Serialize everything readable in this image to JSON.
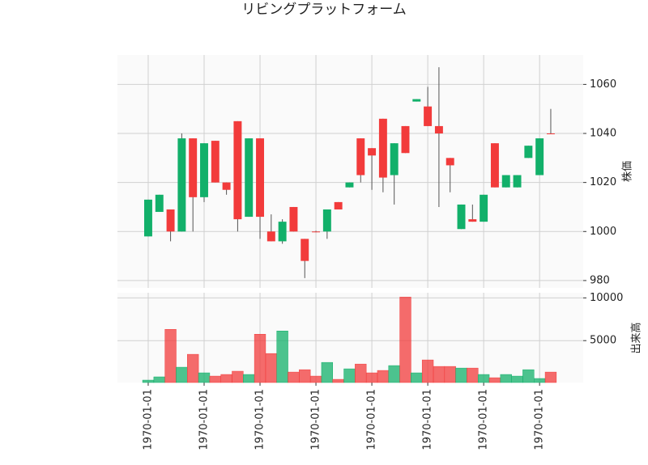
{
  "chart_data": {
    "type": "candlestick",
    "title": "リビングプラットフォーム",
    "ylabel": "株価",
    "volume_label": "出来高",
    "up_color": "#12b06a",
    "down_color": "#f23b3b",
    "grid": true,
    "xlim": [
      -2.75,
      38.9
    ],
    "xticks": [
      {
        "value": 0,
        "label": "1970-01-01"
      },
      {
        "value": 5,
        "label": "1970-01-01"
      },
      {
        "value": 10,
        "label": "1970-01-01"
      },
      {
        "value": 15,
        "label": "1970-01-01"
      },
      {
        "value": 20,
        "label": "1970-01-01"
      },
      {
        "value": 25,
        "label": "1970-01-01"
      },
      {
        "value": 30,
        "label": "1970-01-01"
      },
      {
        "value": 35,
        "label": "1970-01-01"
      }
    ],
    "ylim": [
      977,
      1072
    ],
    "yticks": [
      980,
      1000,
      1020,
      1040,
      1060
    ],
    "volume_ylim": [
      100,
      10600
    ],
    "volume_ticks": [
      5000,
      10000
    ],
    "open": [
      998,
      1008,
      1009,
      1000,
      1038,
      1014,
      1037,
      1020,
      1045,
      1006,
      1038,
      1000,
      996,
      1010,
      997,
      1000,
      1000,
      1012,
      1018,
      1038,
      1034,
      1046,
      1023,
      1043,
      1053,
      1051,
      1043,
      1030,
      1001,
      1005,
      1004,
      1036,
      1018,
      1018,
      1030,
      1023,
      1040
    ],
    "high": [
      1013,
      1015,
      1009,
      1040,
      1038,
      1036,
      1037,
      1020,
      1045,
      1038,
      1038,
      1007,
      1005,
      1010,
      997,
      1000.3,
      1009,
      1012,
      1020,
      1038,
      1034,
      1046,
      1036,
      1043,
      1054,
      1059,
      1067,
      1030,
      1011,
      1011,
      1015,
      1036,
      1023,
      1023,
      1035,
      1038,
      1050
    ],
    "low": [
      998,
      1008,
      996,
      1000,
      1000,
      1012,
      1020,
      1015,
      1000,
      1006,
      997,
      996,
      995,
      1000,
      981,
      999.7,
      997,
      1009,
      1018,
      1020,
      1017,
      1016,
      1011,
      1032,
      1053,
      1043,
      1010,
      1016,
      1001,
      1004,
      1004,
      1018,
      1018,
      1018,
      1030,
      1023,
      1040
    ],
    "close": [
      1013,
      1015,
      1000,
      1038,
      1014,
      1036,
      1020,
      1017,
      1005,
      1038,
      1006,
      996,
      1004,
      1000,
      988,
      999.8,
      1009,
      1009,
      1020,
      1023,
      1031,
      1022,
      1036,
      1032,
      1054,
      1043,
      1040,
      1027,
      1011,
      1004,
      1015,
      1018,
      1023,
      1023,
      1035,
      1038,
      1039.8
    ],
    "volume": [
      380,
      760,
      6320,
      1890,
      3400,
      1230,
      850,
      1040,
      1420,
      1040,
      5750,
      3490,
      6130,
      1320,
      1600,
      850,
      2450,
      470,
      1700,
      2260,
      1230,
      1510,
      2080,
      10090,
      1230,
      2740,
      1980,
      1980,
      1790,
      1790,
      1040,
      660,
      1040,
      850,
      1600,
      570,
      1320
    ]
  }
}
